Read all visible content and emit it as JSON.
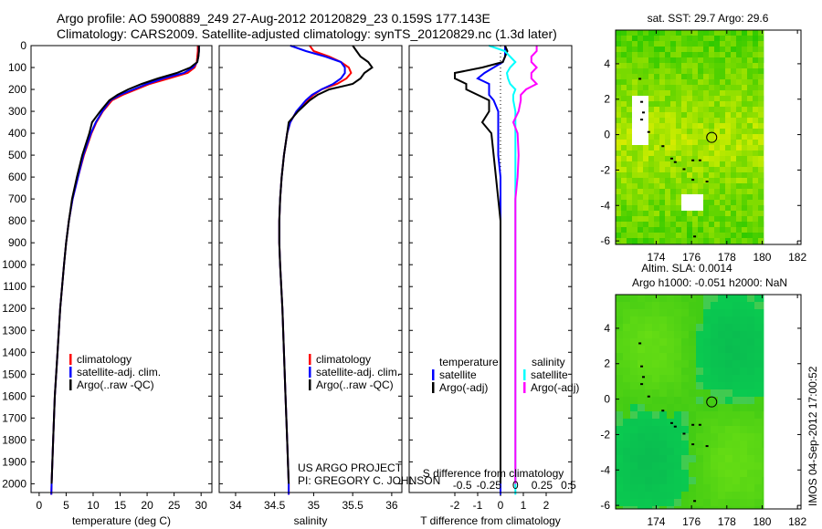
{
  "header": {
    "line1": "Argo profile: AO 5900889_249 27-Aug-2012 20120829_23 0.159S 177.143E",
    "line2": "Climatology: CARS2009. Satellite-adjusted climatology: synTS_20120829.nc (1.3d later)"
  },
  "annotations": {
    "project": "US ARGO PROJECT",
    "pi": "PI: GREGORY C. JOHNSON",
    "timestamp": "IMOS 04-Sep-2012 17:00:52"
  },
  "colors": {
    "clim": "#ff0000",
    "sat": "#0000ff",
    "argo": "#000000",
    "sal_sat": "#00ffff",
    "sal_argo": "#ff00ff"
  },
  "depth": [
    0,
    25,
    50,
    75,
    100,
    125,
    150,
    175,
    200,
    225,
    250,
    300,
    350,
    400,
    500,
    600,
    700,
    800,
    900,
    1000,
    1200,
    1400,
    1600,
    1800,
    2000,
    2050
  ],
  "chart_data": [
    {
      "type": "line",
      "xlabel": "temperature (deg C)",
      "xlim": [
        -1.5,
        32
      ],
      "ylim": [
        2040,
        0
      ],
      "xticks": [
        0,
        5,
        10,
        15,
        20,
        25,
        30
      ],
      "yticks": [
        0,
        100,
        200,
        300,
        400,
        500,
        600,
        700,
        800,
        900,
        1000,
        1100,
        1200,
        1300,
        1400,
        1500,
        1600,
        1700,
        1800,
        1900,
        2000
      ],
      "legend": [
        "climatology",
        "satellite-adj. clim.",
        "Argo(..raw -QC)"
      ],
      "series": [
        {
          "name": "climatology",
          "color": "#ff0000",
          "values": [
            29.4,
            29.4,
            29.3,
            29.2,
            28.8,
            27.5,
            24,
            20.5,
            18,
            15.5,
            13.5,
            11.8,
            10.6,
            9.7,
            8.3,
            7.2,
            6.2,
            5.5,
            5.0,
            4.6,
            3.9,
            3.4,
            2.9,
            2.6,
            2.3,
            2.25
          ]
        },
        {
          "name": "satellite-adj. clim.",
          "color": "#0000ff",
          "values": [
            29.6,
            29.6,
            29.5,
            29.3,
            28.5,
            26.8,
            23,
            20,
            17.5,
            15,
            13.2,
            11.7,
            10.5,
            9.6,
            8.2,
            7.2,
            6.2,
            5.5,
            5.0,
            4.6,
            3.9,
            3.4,
            2.9,
            2.6,
            2.3,
            2.25
          ]
        },
        {
          "name": "Argo(..raw -QC)",
          "color": "#000000",
          "values": [
            29.6,
            29.6,
            29.5,
            29.3,
            28.0,
            25.5,
            22,
            19,
            16.5,
            14.5,
            13,
            11.3,
            9.8,
            9.3,
            8.0,
            7.0,
            6.1,
            5.5,
            5.0,
            4.6,
            3.9,
            3.4,
            2.9,
            2.6,
            2.3,
            null
          ]
        }
      ]
    },
    {
      "type": "line",
      "xlabel": "salinity",
      "xlim": [
        33.79,
        36.13
      ],
      "ylim": [
        2040,
        0
      ],
      "xticks": [
        34,
        34.5,
        35,
        35.5,
        36
      ],
      "xticklabels": [
        "34",
        "34.5",
        "35",
        "35.5",
        "36"
      ],
      "legend": [
        "climatology",
        "satellite-adj. clim.",
        "Argo(..raw -QC)"
      ],
      "series": [
        {
          "name": "climatology",
          "color": "#ff0000",
          "values": [
            34.95,
            35.0,
            35.2,
            35.35,
            35.45,
            35.48,
            35.42,
            35.3,
            35.1,
            35.0,
            34.92,
            34.78,
            34.7,
            34.66,
            34.62,
            34.59,
            34.57,
            34.56,
            34.56,
            34.57,
            34.6,
            34.62,
            34.64,
            34.66,
            34.68,
            34.68
          ]
        },
        {
          "name": "satellite-adj. clim.",
          "color": "#0000ff",
          "values": [
            34.7,
            34.9,
            35.15,
            35.35,
            35.4,
            35.4,
            35.35,
            35.25,
            35.1,
            34.98,
            34.9,
            34.78,
            34.7,
            34.66,
            34.62,
            34.59,
            34.57,
            34.56,
            34.56,
            34.57,
            34.6,
            34.62,
            34.64,
            34.66,
            34.68,
            34.68
          ]
        },
        {
          "name": "Argo(..raw -QC)",
          "color": "#000000",
          "values": [
            35.5,
            35.55,
            35.6,
            35.7,
            35.75,
            35.65,
            35.6,
            35.5,
            35.2,
            35.05,
            34.95,
            34.8,
            34.68,
            34.66,
            34.62,
            34.59,
            34.57,
            34.56,
            34.56,
            34.57,
            34.6,
            34.62,
            34.64,
            34.66,
            34.68,
            null
          ]
        }
      ]
    },
    {
      "type": "line",
      "xlabel": "T difference from climatology",
      "x2label": "S difference from climatology",
      "xlim": [
        -4,
        3.12
      ],
      "x2lim": [
        -1,
        0.53
      ],
      "ylim": [
        2040,
        0
      ],
      "xticks": [
        -2,
        -1,
        0,
        1,
        2
      ],
      "x2ticks": [
        -0.5,
        -0.25,
        0,
        0.25,
        0.5
      ],
      "x2ticklabels": [
        "-0.5",
        "-0.25",
        "0",
        "0.25",
        "0.5"
      ],
      "legend": {
        "temperature": "temperature",
        "salinity": "salinity",
        "t_sat": "satellite",
        "t_argo": "Argo(-adj)",
        "s_sat": "satellite",
        "s_argo": "Argo(-adj)"
      },
      "series": [
        {
          "name": "T satellite",
          "axis": "T",
          "color": "#0000ff",
          "values": [
            0.2,
            0.2,
            0.2,
            0.1,
            -0.3,
            -0.7,
            -1,
            -0.5,
            -0.5,
            -0.5,
            -0.3,
            -0.1,
            -0.1,
            -0.1,
            -0.1,
            0,
            0,
            0,
            0,
            0,
            0,
            0,
            0,
            0,
            0,
            0
          ]
        },
        {
          "name": "T Argo(-adj)",
          "axis": "T",
          "color": "#000000",
          "values": [
            0.2,
            0.3,
            0.2,
            0.1,
            -0.8,
            -2,
            -2,
            -1.5,
            -1.5,
            -1,
            -0.5,
            -0.5,
            -0.8,
            -0.4,
            -0.3,
            -0.2,
            -0.1,
            0,
            0,
            0,
            0,
            0,
            0,
            0,
            0,
            null
          ]
        },
        {
          "name": "S satellite",
          "axis": "S",
          "color": "#00ffff",
          "values": [
            -0.25,
            -0.1,
            -0.05,
            0,
            -0.05,
            -0.08,
            -0.07,
            -0.05,
            0,
            -0.02,
            -0.02,
            0,
            0,
            0,
            0,
            0,
            0,
            0,
            0,
            0,
            0,
            0,
            0,
            0,
            0,
            0
          ]
        },
        {
          "name": "S Argo(-adj)",
          "axis": "S",
          "color": "#ff00ff",
          "values": [
            0.2,
            0.2,
            0.15,
            0.15,
            0.2,
            0.15,
            0.15,
            0.2,
            0.1,
            0.05,
            0.05,
            0.03,
            -0.02,
            0.02,
            0.03,
            0.02,
            0,
            0,
            0,
            0,
            0,
            0,
            0,
            0,
            0,
            null
          ]
        }
      ]
    },
    {
      "type": "heatmap",
      "title": "sat. SST: 29.7 Argo: 29.6",
      "xlim": [
        171.7,
        182.2
      ],
      "ylim": [
        -6.2,
        5.9
      ],
      "xticks": [
        174,
        176,
        178,
        180,
        182
      ],
      "yticks": [
        -6,
        -4,
        -2,
        0,
        2,
        4
      ],
      "argo_position": {
        "lon": 177.143,
        "lat": -0.159
      }
    },
    {
      "type": "heatmap",
      "title": "Altim. SLA: 0.0014",
      "subtitle": "Argo h1000: -0.051 h2000: NaN",
      "xlim": [
        171.7,
        182.2
      ],
      "ylim": [
        -6.2,
        5.9
      ],
      "xticks": [
        174,
        176,
        178,
        180,
        182
      ],
      "yticks": [
        -6,
        -4,
        -2,
        0,
        2,
        4
      ],
      "argo_position": {
        "lon": 177.143,
        "lat": -0.159
      }
    }
  ]
}
